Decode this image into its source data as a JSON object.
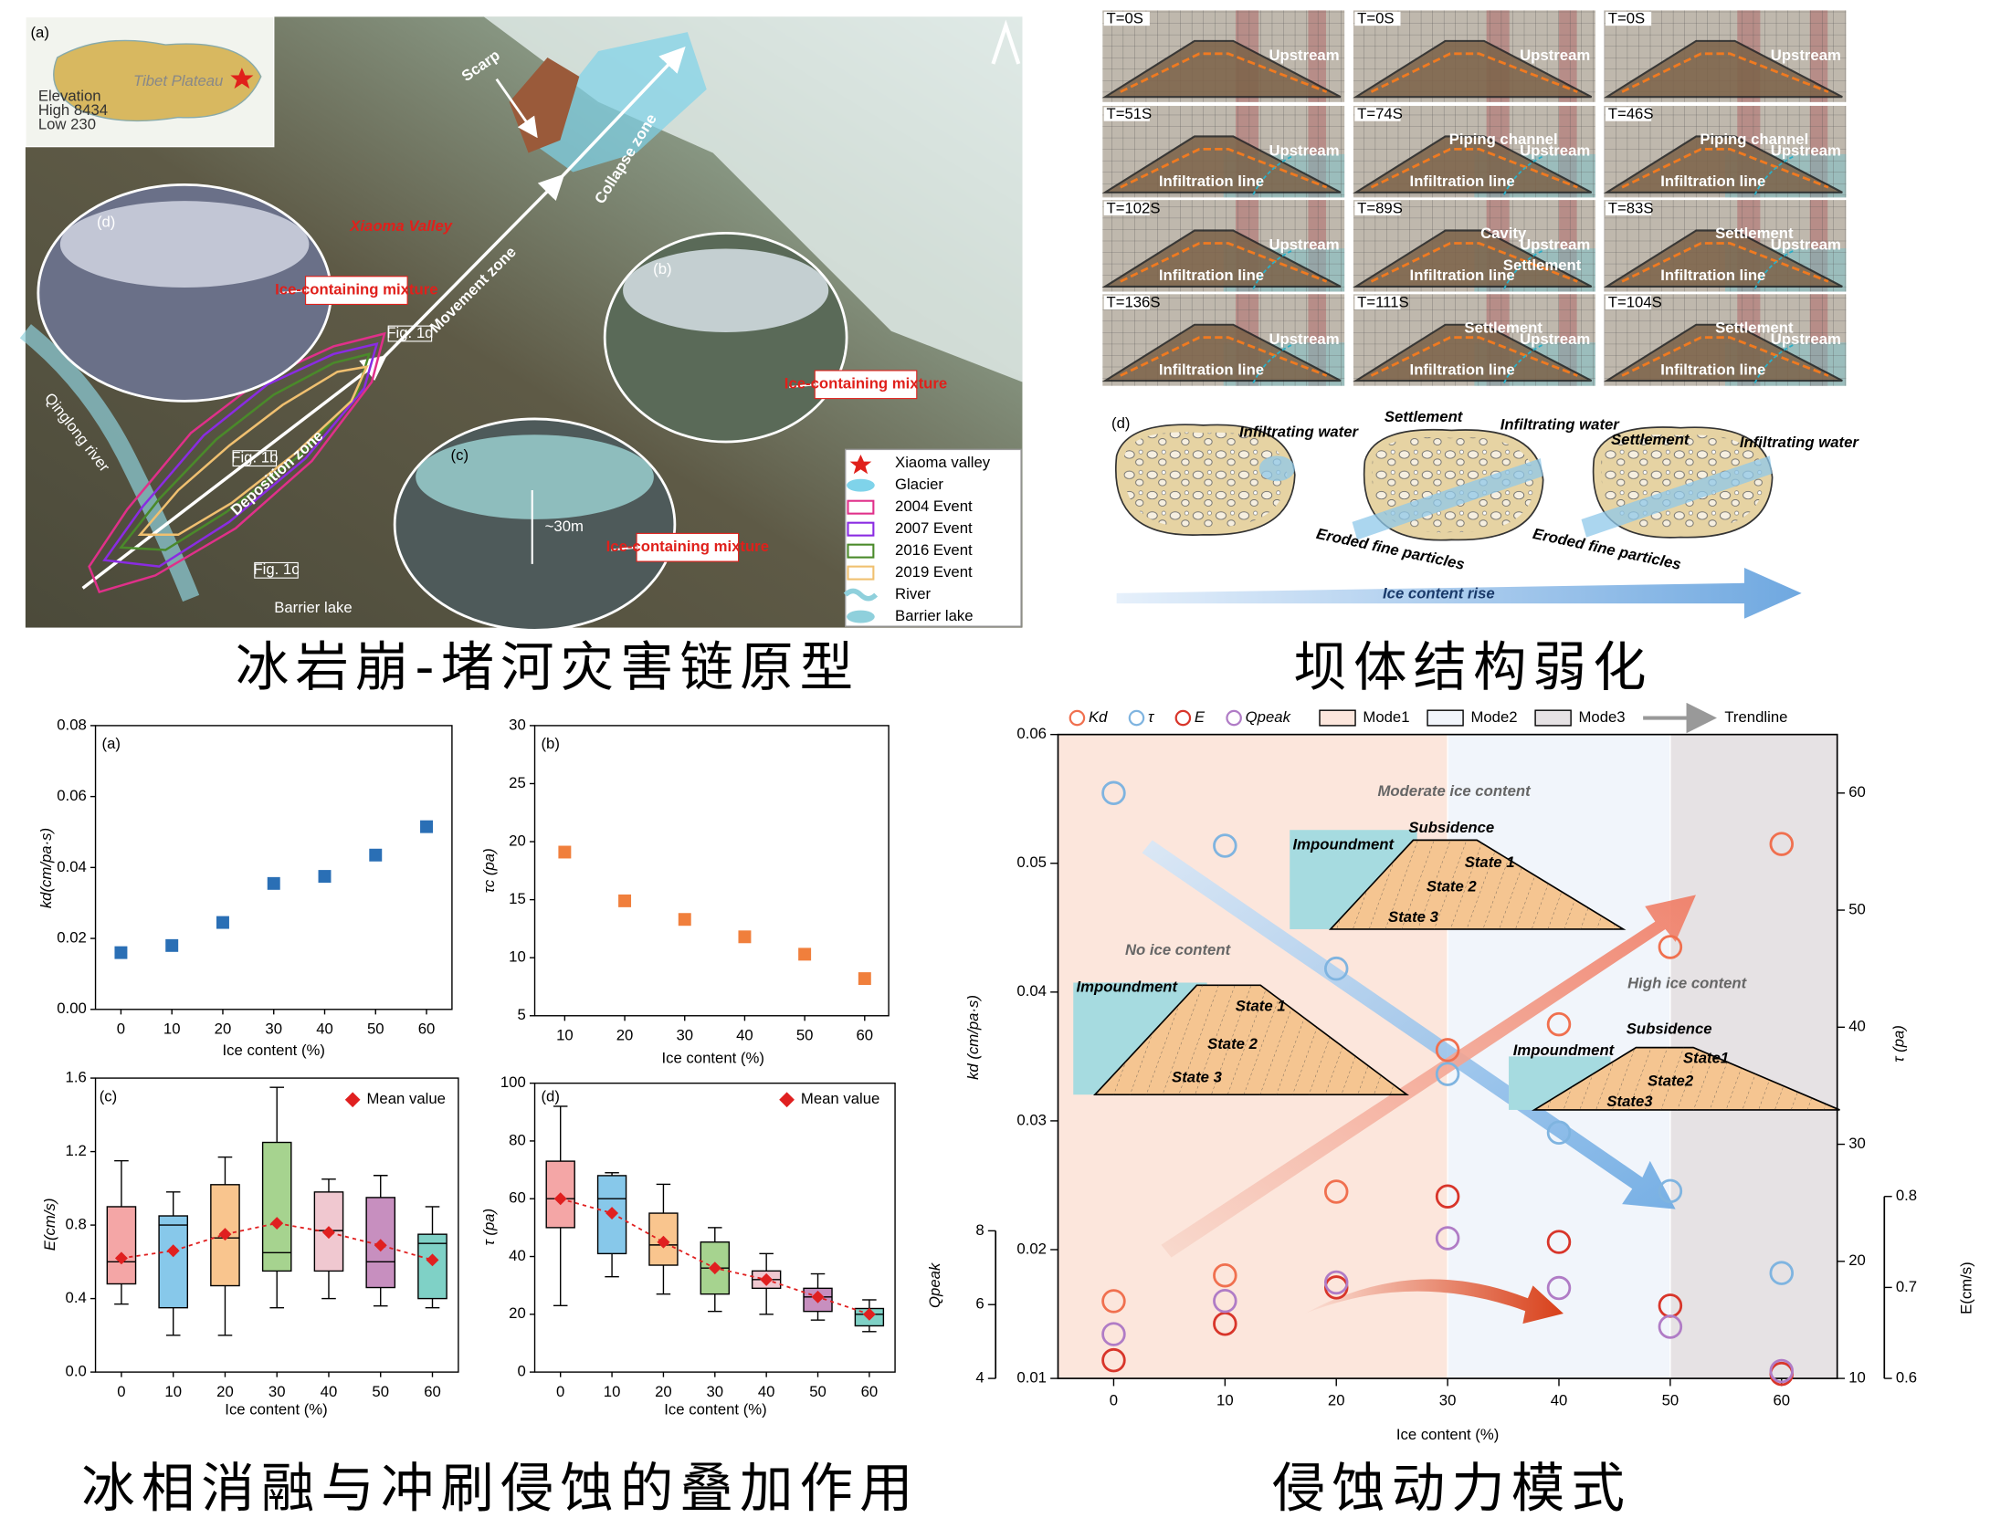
{
  "map_panel": {
    "label": "(a)",
    "inset_label": "Tibet Plateau",
    "inset_legend": [
      "Elevation",
      "High 8434",
      "Low 230"
    ],
    "valley": "Xiaoma Valley",
    "zones": [
      "Scarp",
      "Collapse zone",
      "Movement zone",
      "Deposition zone"
    ],
    "river": "Qinglong river",
    "lake": "Barrier lake",
    "photos": [
      {
        "label": "(d)",
        "note": "Ice-containing mixture"
      },
      {
        "label": "(b)",
        "note": "Ice-containing mixture"
      },
      {
        "label": "(c)",
        "note": "Ice-containing mixture",
        "height": "~30m"
      }
    ],
    "fig_refs": [
      "Fig. 1d",
      "Fig. 1b",
      "Fig. 1c"
    ],
    "legend": [
      {
        "name": "Xiaoma valley",
        "color": "#e0201b",
        "symbol": "star"
      },
      {
        "name": "Glacier",
        "color": "#7fd3ea",
        "symbol": "blob"
      },
      {
        "name": "2004 Event",
        "color": "#e0308a",
        "symbol": "box"
      },
      {
        "name": "2007 Event",
        "color": "#8a2be2",
        "symbol": "box"
      },
      {
        "name": "2016 Event",
        "color": "#4a8a2a",
        "symbol": "box"
      },
      {
        "name": "2019 Event",
        "color": "#f0c070",
        "symbol": "box"
      },
      {
        "name": "River",
        "color": "#8fd0dc",
        "symbol": "wave"
      },
      {
        "name": "Barrier lake",
        "color": "#8fd0dc",
        "symbol": "blob"
      }
    ]
  },
  "experiment_panel": {
    "columns": [
      {
        "frames": [
          {
            "time": "T=0S",
            "notes": [
              "Upstream"
            ]
          },
          {
            "time": "T=51S",
            "notes": [
              "Upstream",
              "Infiltration line"
            ]
          },
          {
            "time": "T=102S",
            "notes": [
              "Upstream",
              "Infiltration line"
            ]
          },
          {
            "time": "T=136S",
            "notes": [
              "Upstream",
              "Infiltration line"
            ]
          }
        ]
      },
      {
        "frames": [
          {
            "time": "T=0S",
            "notes": [
              "Upstream"
            ]
          },
          {
            "time": "T=74S",
            "notes": [
              "Upstream",
              "Infiltration line",
              "Piping channel"
            ]
          },
          {
            "time": "T=89S",
            "notes": [
              "Upstream",
              "Infiltration line",
              "Cavity",
              "Settlement"
            ]
          },
          {
            "time": "T=111S",
            "notes": [
              "Upstream",
              "Infiltration line",
              "Settlement"
            ]
          }
        ]
      },
      {
        "frames": [
          {
            "time": "T=0S",
            "notes": [
              "Upstream"
            ]
          },
          {
            "time": "T=46S",
            "notes": [
              "Upstream",
              "Infiltration line",
              "Piping channel"
            ]
          },
          {
            "time": "T=83S",
            "notes": [
              "Upstream",
              "Infiltration line",
              "Settlement"
            ]
          },
          {
            "time": "T=104S",
            "notes": [
              "Upstream",
              "Infiltration line",
              "Settlement"
            ]
          }
        ]
      }
    ]
  },
  "diagram": {
    "label": "(d)",
    "stages": [
      {
        "labels": [
          "Infiltrating water"
        ]
      },
      {
        "labels": [
          "Settlement",
          "Infiltrating water",
          "Eroded fine particles"
        ]
      },
      {
        "labels": [
          "Settlement",
          "Infiltrating water",
          "Eroded fine particles"
        ]
      }
    ],
    "trend": "Ice content rise"
  },
  "captions": [
    "冰岩崩-堵河灾害链原型",
    "坝体结构弱化",
    "冰相消融与冲刷侵蚀的叠加作用",
    "侵蚀动力模式"
  ],
  "chart_data": [
    {
      "type": "scatter",
      "panel": "(a)",
      "xlabel": "Ice content (%)",
      "ylabel": "kd(cm/pa·s)",
      "color": "#2a6fb5",
      "x": [
        0,
        10,
        20,
        30,
        40,
        50,
        60
      ],
      "values": [
        0.016,
        0.018,
        0.0245,
        0.0355,
        0.0375,
        0.0435,
        0.0515
      ],
      "xlim": [
        -5,
        65
      ],
      "xticks": [
        0,
        10,
        20,
        30,
        40,
        50,
        60
      ],
      "ylim": [
        0,
        0.08
      ],
      "yticks": [
        {
          "value": 0,
          "label": "0.00"
        },
        0.02,
        0.04,
        0.06,
        0.08
      ]
    },
    {
      "type": "scatter",
      "panel": "(b)",
      "xlabel": "Ice content (%)",
      "ylabel": "τc (pa)",
      "color": "#f07f3c",
      "x": [
        10,
        20,
        30,
        40,
        50,
        60
      ],
      "values": [
        19.1,
        14.9,
        13.3,
        11.8,
        10.3,
        8.2
      ],
      "xlim": [
        5,
        64
      ],
      "xticks": [
        10,
        20,
        30,
        40,
        50,
        60
      ],
      "ylim": [
        5,
        30
      ],
      "yticks": [
        5,
        10,
        15,
        20,
        25,
        30
      ]
    },
    {
      "type": "box",
      "panel": "(c)",
      "xlabel": "Ice content (%)",
      "ylabel": "E(cm/s)",
      "mean_label": "Mean value",
      "mean_color": "#e02020",
      "x": [
        0,
        10,
        20,
        30,
        40,
        50,
        60
      ],
      "colors": [
        "#f4a6a6",
        "#87c8ea",
        "#f9c58e",
        "#a6d38f",
        "#f0c8d0",
        "#c78fbf",
        "#7fd1c6"
      ],
      "boxes": [
        {
          "min": 0.37,
          "q1": 0.48,
          "median": 0.6,
          "q3": 0.9,
          "max": 1.15,
          "mean": 0.62
        },
        {
          "min": 0.2,
          "q1": 0.35,
          "median": 0.8,
          "q3": 0.85,
          "max": 0.98,
          "mean": 0.66
        },
        {
          "min": 0.2,
          "q1": 0.47,
          "median": 0.73,
          "q3": 1.02,
          "max": 1.17,
          "mean": 0.75
        },
        {
          "min": 0.35,
          "q1": 0.55,
          "median": 0.65,
          "q3": 1.25,
          "max": 1.55,
          "mean": 0.81
        },
        {
          "min": 0.4,
          "q1": 0.55,
          "median": 0.77,
          "q3": 0.98,
          "max": 1.05,
          "mean": 0.76
        },
        {
          "min": 0.36,
          "q1": 0.46,
          "median": 0.6,
          "q3": 0.95,
          "max": 1.07,
          "mean": 0.69
        },
        {
          "min": 0.35,
          "q1": 0.4,
          "median": 0.7,
          "q3": 0.75,
          "max": 0.9,
          "mean": 0.61
        }
      ],
      "xlim": [
        -5,
        65
      ],
      "xticks": [
        0,
        10,
        20,
        30,
        40,
        50,
        60
      ],
      "ylim": [
        0,
        1.6
      ],
      "yticks": [
        {
          "value": 0,
          "label": "0.0"
        },
        0.4,
        0.8,
        1.2,
        1.6
      ]
    },
    {
      "type": "box",
      "panel": "(d)",
      "xlabel": "Ice content (%)",
      "ylabel": "τ (pa)",
      "mean_label": "Mean value",
      "mean_color": "#e02020",
      "x": [
        0,
        10,
        20,
        30,
        40,
        50,
        60
      ],
      "colors": [
        "#f4a6a6",
        "#87c8ea",
        "#f9c58e",
        "#a6d38f",
        "#f0c8d0",
        "#c78fbf",
        "#7fd1c6"
      ],
      "boxes": [
        {
          "min": 23,
          "q1": 50,
          "median": 60,
          "q3": 73,
          "max": 92,
          "mean": 60
        },
        {
          "min": 33,
          "q1": 41,
          "median": 60,
          "q3": 68,
          "max": 69,
          "mean": 55
        },
        {
          "min": 27,
          "q1": 37,
          "median": 44,
          "q3": 55,
          "max": 65,
          "mean": 45
        },
        {
          "min": 21,
          "q1": 27,
          "median": 36,
          "q3": 45,
          "max": 50,
          "mean": 36
        },
        {
          "min": 20,
          "q1": 29,
          "median": 32,
          "q3": 35,
          "max": 41,
          "mean": 32
        },
        {
          "min": 18,
          "q1": 21,
          "median": 26,
          "q3": 29,
          "max": 34,
          "mean": 26
        },
        {
          "min": 14,
          "q1": 16,
          "median": 20,
          "q3": 22,
          "max": 25,
          "mean": 20
        }
      ],
      "xlim": [
        -5,
        65
      ],
      "xticks": [
        0,
        10,
        20,
        30,
        40,
        50,
        60
      ],
      "ylim": [
        0,
        100
      ],
      "yticks": [
        0,
        20,
        40,
        60,
        80,
        100
      ]
    },
    {
      "type": "multi-axis-scatter",
      "xlabel": "Ice content (%)",
      "ylabel": "kd (cm/pa·s)",
      "y2label": "τ (pa)",
      "y3label": "Qpeak",
      "y4label": "E(cm/s)",
      "x": [
        0,
        10,
        20,
        30,
        40,
        50,
        60
      ],
      "series": [
        {
          "name": "Kd",
          "color": "#f0704f",
          "axis": "y",
          "values": [
            0.016,
            0.018,
            0.0245,
            0.0355,
            0.0375,
            0.0435,
            0.0515
          ]
        },
        {
          "name": "τ",
          "color": "#7fb4e0",
          "axis": "y2",
          "values": [
            60,
            55.5,
            45,
            36,
            31,
            26,
            19
          ]
        },
        {
          "name": "E",
          "color": "#d8352a",
          "axis": "y4",
          "values": [
            0.62,
            0.66,
            0.7,
            0.8,
            0.75,
            0.68,
            0.605
          ]
        },
        {
          "name": "Qpeak",
          "color": "#b07cc6",
          "axis": "y3",
          "values": [
            5.2,
            6.1,
            6.6,
            7.8,
            6.45,
            5.4,
            4.2
          ]
        }
      ],
      "modes": [
        {
          "name": "Mode1",
          "color": "#fce6dc"
        },
        {
          "name": "Mode2",
          "color": "#f1f5fb"
        },
        {
          "name": "Mode3",
          "color": "#e6e2e4"
        }
      ],
      "mode_bounds": [
        30,
        50
      ],
      "trendline_label": "Trendline",
      "xlim": [
        -5,
        65
      ],
      "xticks": [
        0,
        10,
        20,
        30,
        40,
        50,
        60
      ],
      "ylim": [
        0.01,
        0.06
      ],
      "yticks": [
        0.01,
        0.02,
        0.03,
        0.04,
        0.05,
        0.06
      ],
      "y2lim": [
        10,
        65
      ],
      "y2ticks": [
        10,
        20,
        30,
        40,
        50,
        60
      ],
      "y3lim": [
        4,
        8
      ],
      "y3ticks": [
        4,
        6,
        8
      ],
      "y4lim": [
        0.6,
        0.8
      ],
      "y4ticks": [
        0.6,
        0.7,
        0.8
      ],
      "insets": [
        {
          "title": "Moderate ice content",
          "labels": [
            "Impoundment",
            "Subsidence",
            "State 1",
            "State 2",
            "State 3"
          ]
        },
        {
          "title": "No ice content",
          "labels": [
            "Impoundment",
            "State 1",
            "State 2",
            "State 3"
          ]
        },
        {
          "title": "High ice content",
          "labels": [
            "Subsidence",
            "Impoundment",
            "State1",
            "State2",
            "State3"
          ]
        }
      ]
    }
  ]
}
